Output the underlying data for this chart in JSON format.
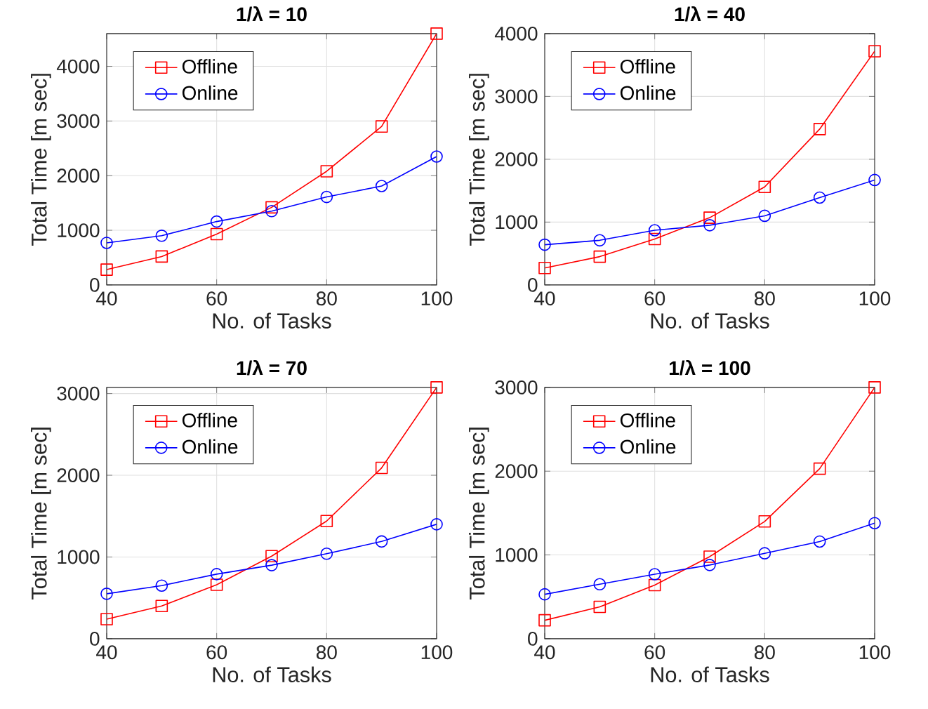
{
  "chart_data": [
    {
      "type": "line",
      "title": "1/λ = 10",
      "xlabel": "No. of Tasks",
      "ylabel": "Total Time [m sec]",
      "x": [
        40,
        50,
        60,
        70,
        80,
        90,
        100
      ],
      "xlim": [
        40,
        100
      ],
      "xticks": [
        40,
        60,
        80,
        100
      ],
      "ylim": [
        0,
        4600
      ],
      "yticks": [
        0,
        1000,
        2000,
        3000,
        4000
      ],
      "grid": true,
      "legend": "top left",
      "line_style": "solid",
      "series": [
        {
          "name": "Offline",
          "color": "#ff0000",
          "marker": "square",
          "values": [
            280,
            520,
            930,
            1420,
            2080,
            2900,
            4600
          ]
        },
        {
          "name": "Online",
          "color": "#0000ff",
          "marker": "circle",
          "values": [
            770,
            900,
            1160,
            1350,
            1610,
            1810,
            2350
          ]
        }
      ]
    },
    {
      "type": "line",
      "title": "1/λ = 40",
      "xlabel": "No. of Tasks",
      "ylabel": "Total Time [m sec]",
      "x": [
        40,
        50,
        60,
        70,
        80,
        90,
        100
      ],
      "xlim": [
        40,
        100
      ],
      "xticks": [
        40,
        60,
        80,
        100
      ],
      "ylim": [
        0,
        4000
      ],
      "yticks": [
        0,
        1000,
        2000,
        3000,
        4000
      ],
      "grid": true,
      "legend": "top left",
      "line_style": "solid",
      "series": [
        {
          "name": "Offline",
          "color": "#ff0000",
          "marker": "square",
          "values": [
            270,
            450,
            730,
            1070,
            1560,
            2480,
            3720
          ]
        },
        {
          "name": "Online",
          "color": "#0000ff",
          "marker": "circle",
          "values": [
            640,
            710,
            870,
            950,
            1100,
            1390,
            1670
          ]
        }
      ]
    },
    {
      "type": "line",
      "title": "1/λ = 70",
      "xlabel": "No. of Tasks",
      "ylabel": "Total Time [m sec]",
      "x": [
        40,
        50,
        60,
        70,
        80,
        90,
        100
      ],
      "xlim": [
        40,
        100
      ],
      "xticks": [
        40,
        60,
        80,
        100
      ],
      "ylim": [
        0,
        3075
      ],
      "yticks": [
        0,
        1000,
        2000,
        3000
      ],
      "grid": true,
      "legend": "top left",
      "line_style": "solid",
      "series": [
        {
          "name": "Offline",
          "color": "#ff0000",
          "marker": "square",
          "values": [
            240,
            400,
            660,
            1010,
            1440,
            2090,
            3075
          ]
        },
        {
          "name": "Online",
          "color": "#0000ff",
          "marker": "circle",
          "values": [
            550,
            650,
            790,
            900,
            1040,
            1190,
            1400
          ]
        }
      ]
    },
    {
      "type": "line",
      "title": "1/λ = 100",
      "xlabel": "No. of Tasks",
      "ylabel": "Total Time [m sec]",
      "x": [
        40,
        50,
        60,
        70,
        80,
        90,
        100
      ],
      "xlim": [
        40,
        100
      ],
      "xticks": [
        40,
        60,
        80,
        100
      ],
      "ylim": [
        0,
        3000
      ],
      "yticks": [
        0,
        1000,
        2000,
        3000
      ],
      "grid": true,
      "legend": "top left",
      "line_style": "solid",
      "series": [
        {
          "name": "Offline",
          "color": "#ff0000",
          "marker": "square",
          "values": [
            220,
            380,
            640,
            980,
            1400,
            2030,
            3000
          ]
        },
        {
          "name": "Online",
          "color": "#0000ff",
          "marker": "circle",
          "values": [
            530,
            650,
            770,
            880,
            1020,
            1160,
            1380
          ]
        }
      ]
    }
  ]
}
